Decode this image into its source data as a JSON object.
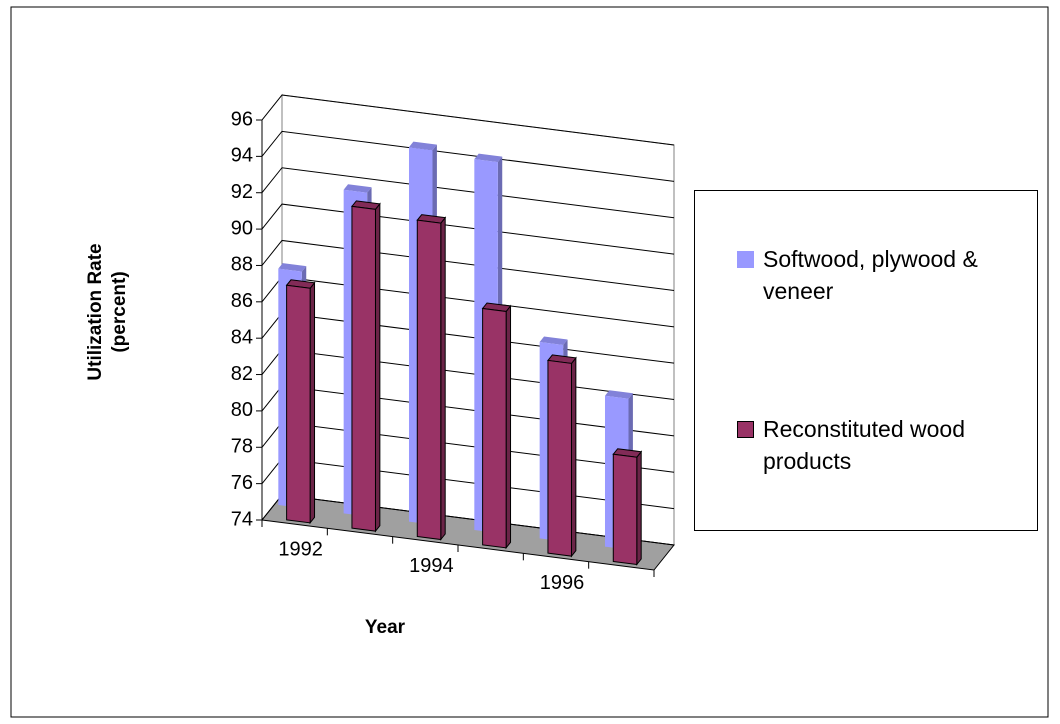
{
  "chart_data": {
    "type": "bar3d",
    "categories": [
      "1992",
      null,
      "1994",
      null,
      "1996",
      null
    ],
    "series": [
      {
        "name": "Softwood, plywood & veneer",
        "color": "#9999ff",
        "values": [
          87,
          91.8,
          94.6,
          94.4,
          84.8,
          82.3
        ]
      },
      {
        "name": "Reconstituted wood products",
        "color": "#993366",
        "values": [
          86.9,
          91.7,
          91.4,
          87,
          84.6,
          79.9
        ]
      }
    ],
    "ylim": [
      74,
      96
    ],
    "yticks": [
      74,
      76,
      78,
      80,
      82,
      84,
      86,
      88,
      90,
      92,
      94,
      96
    ],
    "y_label": [
      "Utilization Rate",
      "(percent)"
    ],
    "x_label": "Year",
    "grid": true,
    "legend": "right"
  }
}
